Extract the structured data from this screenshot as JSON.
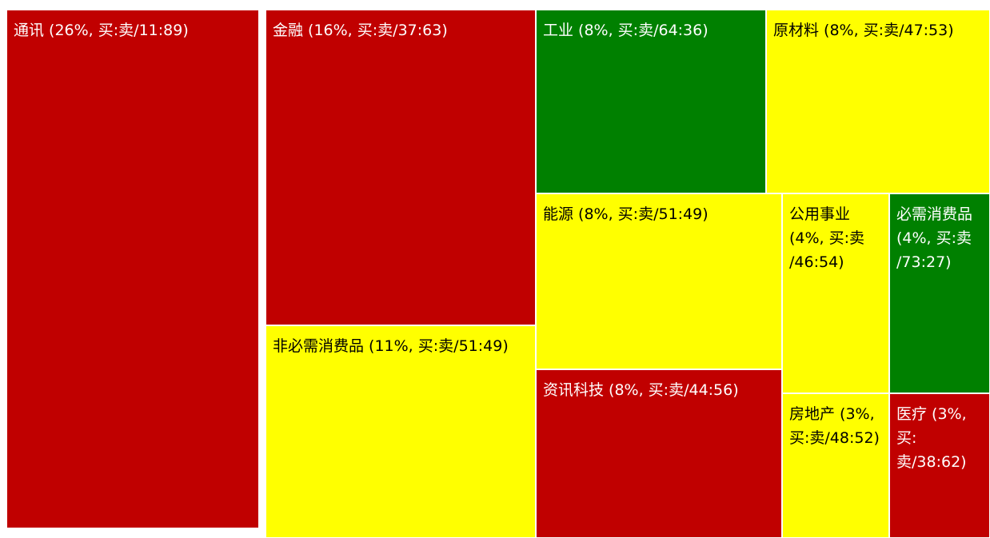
{
  "colors": {
    "sell_dominant": "#c00000",
    "neutral": "#ffff00",
    "buy_dominant": "#008000",
    "border": "#ffffff"
  },
  "chart_data": {
    "type": "treemap",
    "title": "",
    "items": [
      {
        "name": "通讯",
        "weight_pct": 26,
        "buy_sell": "11:89",
        "color": "#c00000",
        "label": "通讯 (26%, 买:卖/11:89)"
      },
      {
        "name": "金融",
        "weight_pct": 16,
        "buy_sell": "37:63",
        "color": "#c00000",
        "label": "金融 (16%, 买:卖/37:63)"
      },
      {
        "name": "非必需消费品",
        "weight_pct": 11,
        "buy_sell": "51:49",
        "color": "#ffff00",
        "label": "非必需消费品 (11%, 买:卖/51:49)"
      },
      {
        "name": "工业",
        "weight_pct": 8,
        "buy_sell": "64:36",
        "color": "#008000",
        "label": "工业 (8%, 买:卖/64:36)"
      },
      {
        "name": "原材料",
        "weight_pct": 8,
        "buy_sell": "47:53",
        "color": "#ffff00",
        "label": "原材料 (8%, 买:卖/47:53)"
      },
      {
        "name": "能源",
        "weight_pct": 8,
        "buy_sell": "51:49",
        "color": "#ffff00",
        "label": "能源 (8%, 买:卖/51:49)"
      },
      {
        "name": "资讯科技",
        "weight_pct": 8,
        "buy_sell": "44:56",
        "color": "#c00000",
        "label": "资讯科技 (8%, 买:卖/44:56)"
      },
      {
        "name": "公用事业",
        "weight_pct": 4,
        "buy_sell": "46:54",
        "color": "#ffff00",
        "label": "公用事业\n(4%, 买:卖\n/46:54)"
      },
      {
        "name": "必需消费品",
        "weight_pct": 4,
        "buy_sell": "73:27",
        "color": "#008000",
        "label": "必需消费品\n(4%, 买:卖\n/73:27)"
      },
      {
        "name": "房地产",
        "weight_pct": 3,
        "buy_sell": "48:52",
        "color": "#ffff00",
        "label": "房地产 (3%,\n买:卖/48:52)"
      },
      {
        "name": "医疗",
        "weight_pct": 3,
        "buy_sell": "38:62",
        "color": "#c00000",
        "label": "医疗 (3%,\n买:卖/38:62)"
      }
    ]
  }
}
